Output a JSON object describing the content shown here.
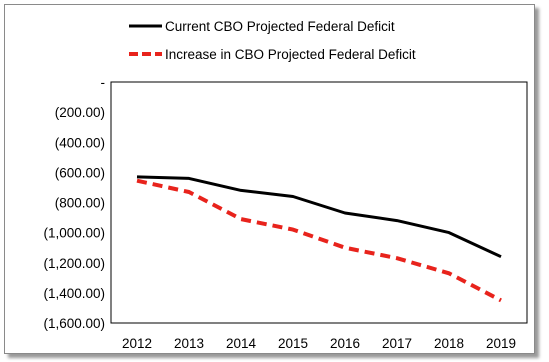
{
  "chart_data": {
    "type": "line",
    "title": "",
    "xlabel": "",
    "ylabel": "",
    "x": [
      "2012",
      "2013",
      "2014",
      "2015",
      "2016",
      "2017",
      "2018",
      "2019"
    ],
    "y_ticks": [
      "-",
      "(200.00)",
      "(400.00)",
      "(600.00)",
      "(800.00)",
      "(1,000.00)",
      "(1,200.00)",
      "(1,400.00)",
      "(1,600.00)"
    ],
    "ylim": [
      -1600,
      0
    ],
    "grid": false,
    "legend_position": "top",
    "series": [
      {
        "name": "Current CBO Projected Federal Deficit",
        "color": "#000000",
        "dash": "solid",
        "values": [
          -630,
          -640,
          -720,
          -760,
          -870,
          -920,
          -1000,
          -1160
        ]
      },
      {
        "name": "Increase in CBO Projected Federal Deficit",
        "color": "#e8231c",
        "dash": "dashed",
        "values": [
          -655,
          -730,
          -910,
          -980,
          -1100,
          -1170,
          -1270,
          -1450
        ]
      }
    ]
  }
}
